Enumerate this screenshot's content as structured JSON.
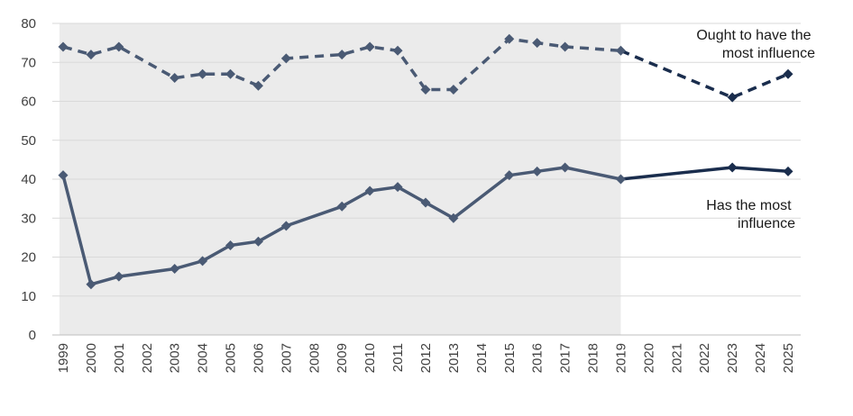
{
  "chart_data": {
    "type": "line",
    "ylim": [
      0,
      80
    ],
    "yticks": [
      0,
      10,
      20,
      30,
      40,
      50,
      60,
      70,
      80
    ],
    "x_categories": [
      "1999",
      "2000",
      "2001",
      "2002",
      "2003",
      "2004",
      "2005",
      "2006",
      "2007",
      "2008",
      "2009",
      "2010",
      "2011",
      "2012",
      "2013",
      "2014",
      "2015",
      "2016",
      "2017",
      "2018",
      "2019",
      "2020",
      "2021",
      "2022",
      "2023",
      "2024",
      "2025"
    ],
    "shaded_range": [
      "1999",
      "2019"
    ],
    "grid": "horizontal",
    "legend": "none",
    "colors": {
      "historic": "#4a5a74",
      "recent": "#1a2d4d",
      "shade": "#ebebeb",
      "grid": "#d9d9d9"
    },
    "series": [
      {
        "name": "Ought to have the most influence",
        "style": "dashed",
        "label_lines": [
          "Ought to have the",
          "most influence"
        ],
        "points": [
          {
            "x": "1999",
            "y": 74
          },
          {
            "x": "2000",
            "y": 72
          },
          {
            "x": "2001",
            "y": 74
          },
          {
            "x": "2003",
            "y": 66
          },
          {
            "x": "2004",
            "y": 67
          },
          {
            "x": "2005",
            "y": 67
          },
          {
            "x": "2006",
            "y": 64
          },
          {
            "x": "2007",
            "y": 71
          },
          {
            "x": "2009",
            "y": 72
          },
          {
            "x": "2010",
            "y": 74
          },
          {
            "x": "2011",
            "y": 73
          },
          {
            "x": "2012",
            "y": 63
          },
          {
            "x": "2013",
            "y": 63
          },
          {
            "x": "2015",
            "y": 76
          },
          {
            "x": "2016",
            "y": 75
          },
          {
            "x": "2017",
            "y": 74
          },
          {
            "x": "2019",
            "y": 73
          },
          {
            "x": "2023",
            "y": 61
          },
          {
            "x": "2025",
            "y": 67
          }
        ]
      },
      {
        "name": "Has the most influence",
        "style": "solid",
        "label_lines": [
          "Has the most",
          "influence"
        ],
        "points": [
          {
            "x": "1999",
            "y": 41
          },
          {
            "x": "2000",
            "y": 13
          },
          {
            "x": "2001",
            "y": 15
          },
          {
            "x": "2003",
            "y": 17
          },
          {
            "x": "2004",
            "y": 19
          },
          {
            "x": "2005",
            "y": 23
          },
          {
            "x": "2006",
            "y": 24
          },
          {
            "x": "2007",
            "y": 28
          },
          {
            "x": "2009",
            "y": 33
          },
          {
            "x": "2010",
            "y": 37
          },
          {
            "x": "2011",
            "y": 38
          },
          {
            "x": "2012",
            "y": 34
          },
          {
            "x": "2013",
            "y": 30
          },
          {
            "x": "2015",
            "y": 41
          },
          {
            "x": "2016",
            "y": 42
          },
          {
            "x": "2017",
            "y": 43
          },
          {
            "x": "2019",
            "y": 40
          },
          {
            "x": "2023",
            "y": 43
          },
          {
            "x": "2025",
            "y": 42
          }
        ]
      }
    ]
  }
}
